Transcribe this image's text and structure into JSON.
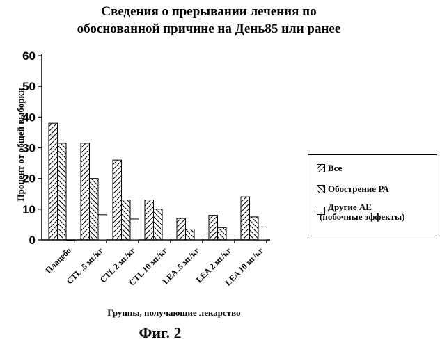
{
  "title_line1": "Сведения о прерывании лечения по",
  "title_line2": "обоснованной причине на День85 или ранее",
  "caption": "Фиг. 2",
  "chart_data": {
    "type": "bar",
    "title": "Сведения о прерывании лечения по обоснованной причине на День85 или ранее",
    "xlabel": "Группы, получающие лекарство",
    "ylabel": "Процент от общей выборки",
    "ylim": [
      0,
      60
    ],
    "yticks": [
      "0",
      "10",
      "20",
      "30",
      "40",
      "50",
      "60"
    ],
    "categories": [
      "Плацебо",
      "CTL .5 мг/кг",
      "CTL 2 мг/кг",
      "CTL 10 мг/кг",
      "LEA .5 мг/кг",
      "LEA 2 мг/кг",
      "LEA 10 мг/кг"
    ],
    "series": [
      {
        "name": "Все",
        "values": [
          38,
          31.5,
          26,
          13,
          7,
          8,
          14
        ]
      },
      {
        "name": "Обострение РА",
        "values": [
          31.5,
          20,
          13,
          10,
          3.5,
          4,
          7.5
        ]
      },
      {
        "name": "Другие АЕ (побочные эффекты)",
        "values": [
          0,
          8.2,
          6.8,
          0.3,
          0.3,
          0.3,
          4.2
        ]
      }
    ],
    "legend_position": "right",
    "grid": false
  },
  "legend": {
    "item1": "Все",
    "item2": "Обострение РА",
    "item3_line1": "Другие АЕ",
    "item3_line2": "(побочные эффекты)"
  }
}
